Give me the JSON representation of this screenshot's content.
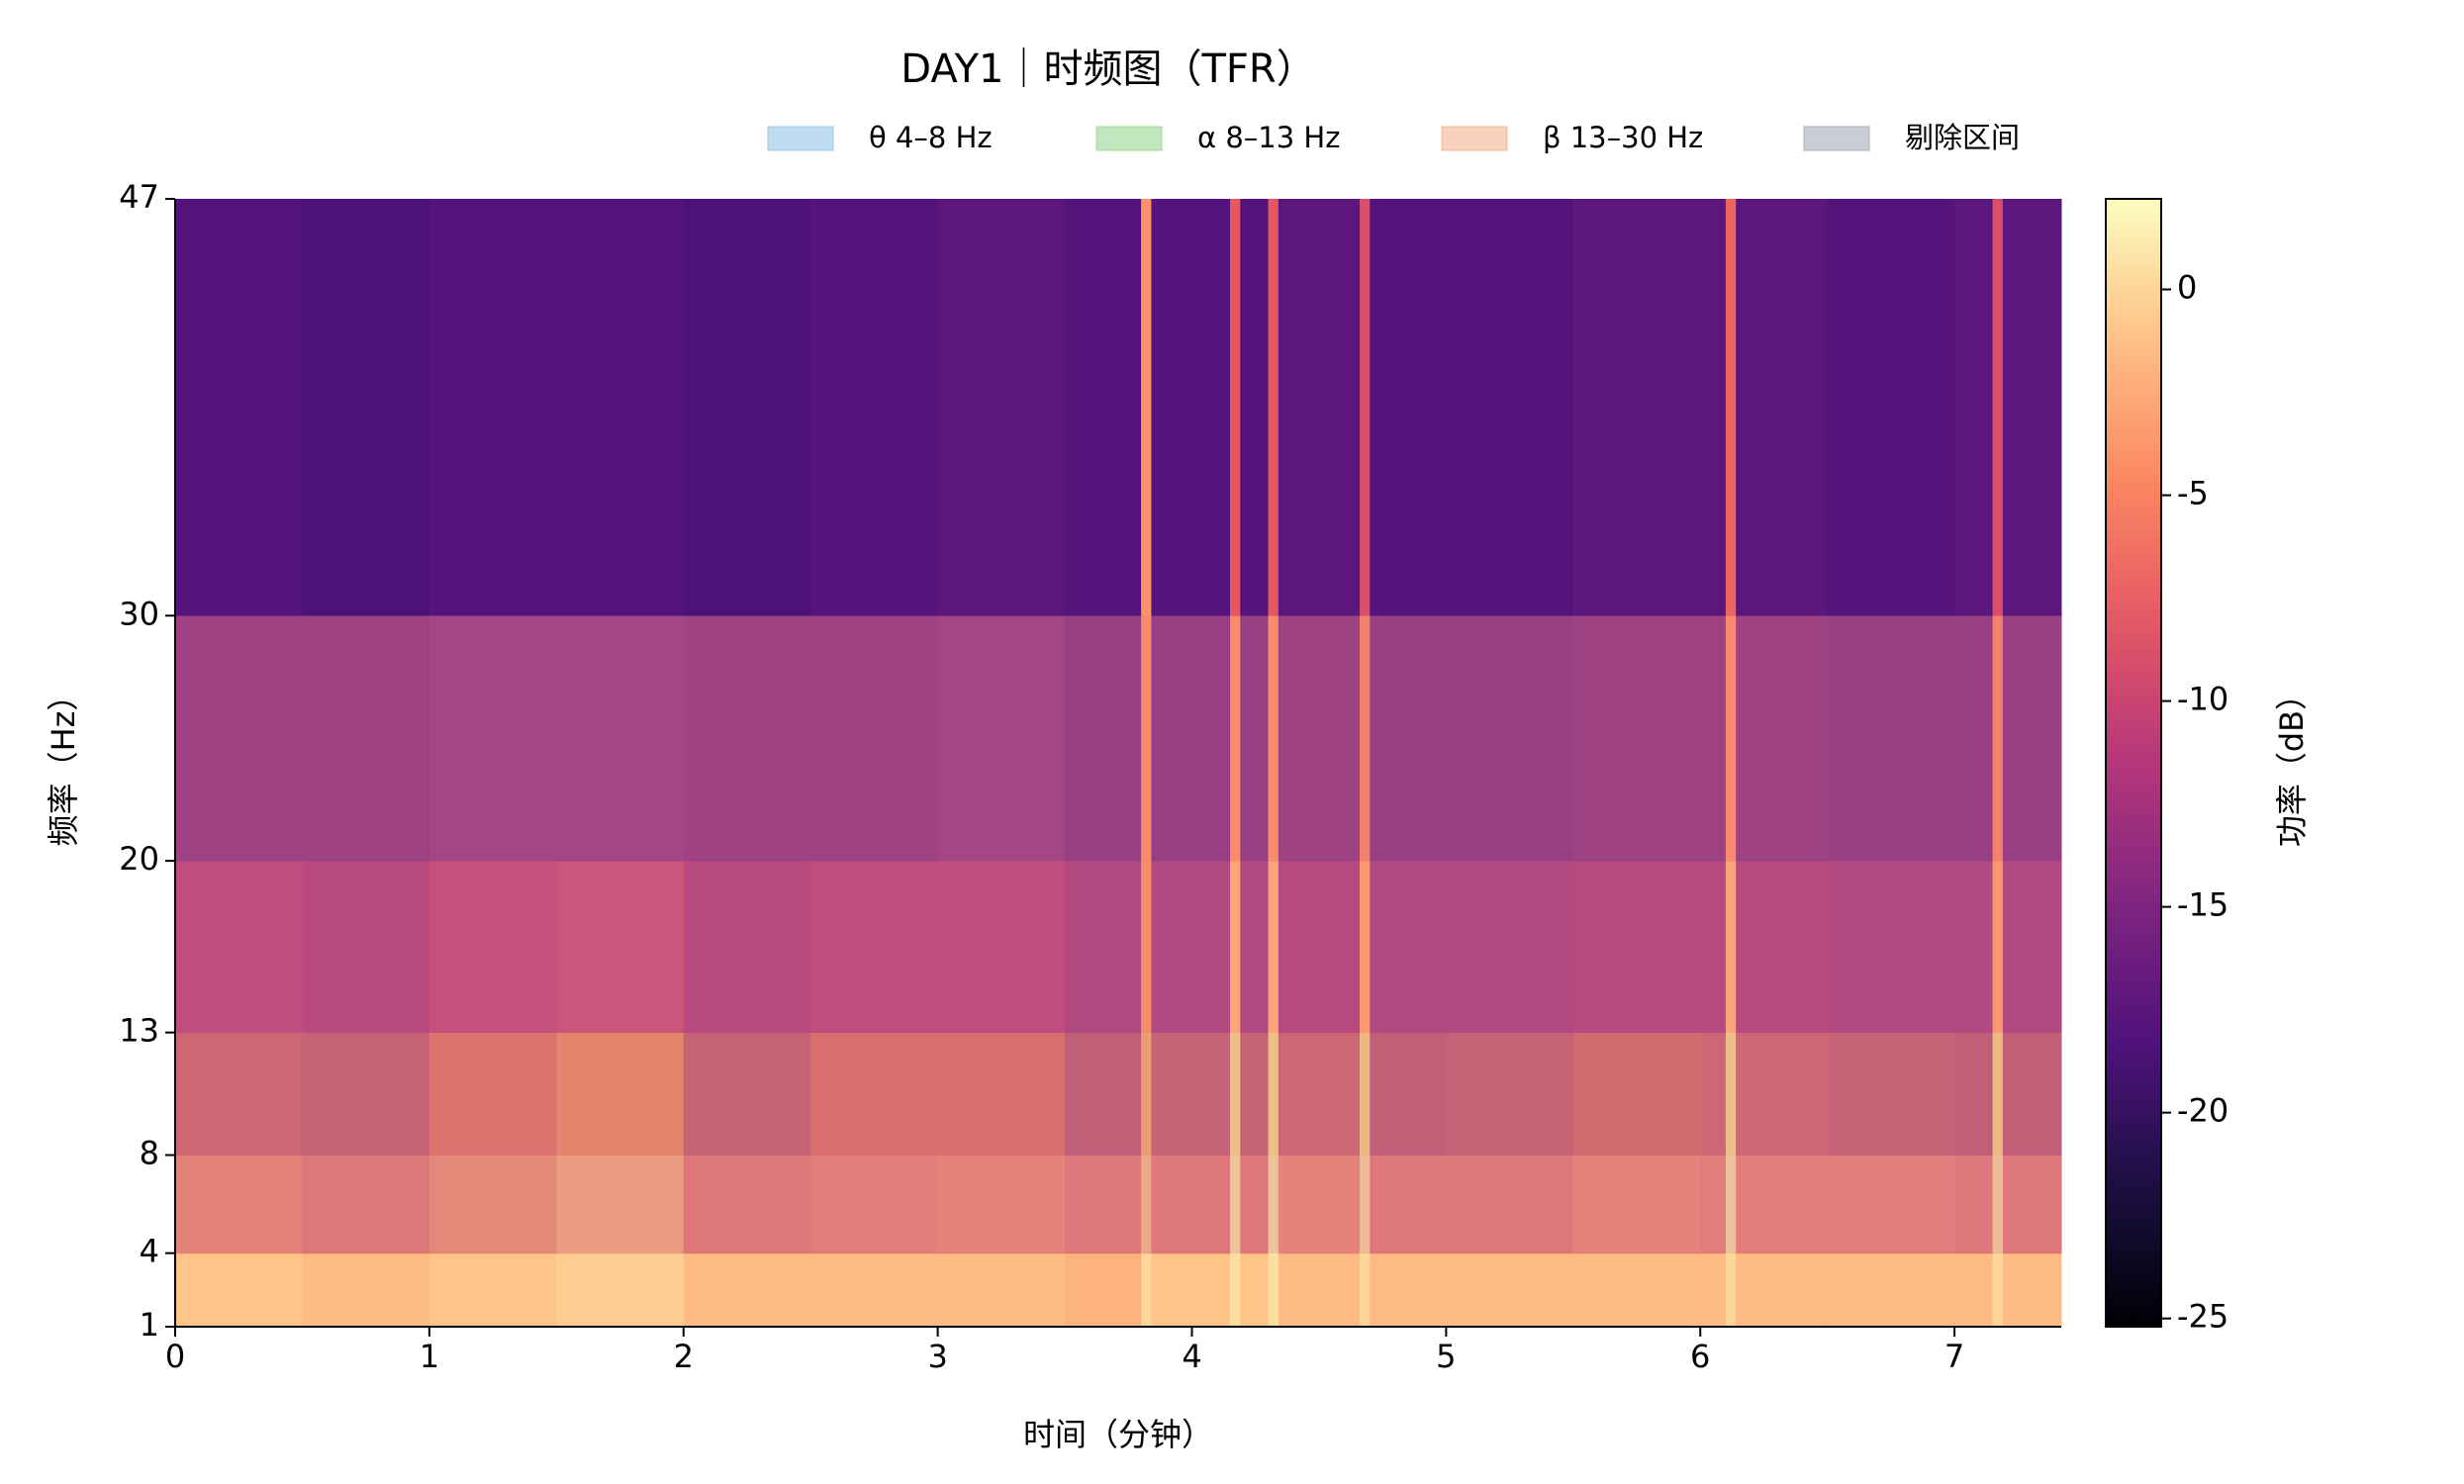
{
  "chart_data": {
    "type": "heatmap",
    "title": "DAY1｜时频图（TFR）",
    "x_label": "时间（分钟）",
    "y_label": "频率（Hz）",
    "colorbar_label": "功率（dB）",
    "colormap": "magma",
    "x": [
      0,
      0.5,
      1,
      1.5,
      2,
      2.5,
      3,
      3.5,
      3.8,
      3.84,
      4.15,
      4.19,
      4.3,
      4.34,
      4.66,
      4.7,
      5,
      5.5,
      6,
      6.1,
      6.14,
      6.5,
      7,
      7.15,
      7.19,
      7.42
    ],
    "y": [
      1,
      4,
      8,
      13,
      20,
      30,
      47
    ],
    "z": [
      [
        -1,
        -1.5,
        -1,
        -0.5,
        -1.5,
        -1.5,
        -1.5,
        -2,
        0,
        -1,
        0.5,
        -1,
        0.5,
        -1.5,
        0,
        -1.5,
        -1.5,
        -1.5,
        -1.5,
        0,
        -1.5,
        -1.5,
        -1.5,
        0,
        -1.5
      ],
      [
        -6,
        -7,
        -5.5,
        -4,
        -7,
        -6.5,
        -6,
        -7,
        -3,
        -7,
        -1,
        -7,
        -1,
        -6,
        -1.5,
        -7,
        -7,
        -6,
        -6.5,
        -1,
        -6.5,
        -6.5,
        -7,
        -1.5,
        -7
      ],
      [
        -9,
        -9.5,
        -7.5,
        -6,
        -9.5,
        -8,
        -8,
        -10,
        -4,
        -9.5,
        -1.5,
        -9.5,
        -1.5,
        -9,
        -2,
        -10,
        -9.5,
        -8.5,
        -9,
        -1.5,
        -9,
        -9.5,
        -10,
        -2,
        -10
      ],
      [
        -11.5,
        -12,
        -11,
        -10.5,
        -12,
        -11.5,
        -11.5,
        -12.5,
        -5,
        -12.5,
        -3,
        -12.5,
        -3,
        -12,
        -4,
        -12.5,
        -12.5,
        -12,
        -12,
        -3,
        -12,
        -12.5,
        -12.5,
        -4,
        -12.5
      ],
      [
        -14,
        -14,
        -13.5,
        -13.5,
        -14,
        -14,
        -13.5,
        -14.5,
        -5,
        -14.5,
        -5,
        -14.5,
        -5,
        -14,
        -6,
        -14.5,
        -14.5,
        -14,
        -14,
        -5,
        -14,
        -14.5,
        -14.5,
        -6,
        -14.5
      ],
      [
        -18,
        -18.5,
        -18,
        -18,
        -18.5,
        -18,
        -17.5,
        -18,
        -4,
        -18,
        -8,
        -18,
        -8,
        -17.5,
        -9,
        -18,
        -18,
        -17.5,
        -17.5,
        -7,
        -17.5,
        -18,
        -17.5,
        -9,
        -17.5
      ]
    ],
    "xlim": [
      0,
      7.42
    ],
    "xticks": [
      0,
      1,
      2,
      3,
      4,
      5,
      6,
      7
    ],
    "ylim": [
      1,
      47
    ],
    "yticks": [
      1,
      4,
      8,
      13,
      20,
      30,
      47
    ],
    "clim": [
      -25.2,
      2.2
    ],
    "cticks": [
      0,
      -5,
      -10,
      -15,
      -20,
      -25
    ],
    "bands": [
      {
        "name": "θ 4–8 Hz",
        "color": "#9ecae9",
        "range": [
          4,
          8
        ]
      },
      {
        "name": "α 8–13 Hz",
        "color": "#a1d99b",
        "range": [
          8,
          13
        ]
      },
      {
        "name": "β 13–30 Hz",
        "color": "#f4b89a",
        "range": [
          13,
          30
        ]
      },
      {
        "name": "剔除区间",
        "color": "#aab2c0"
      }
    ]
  }
}
